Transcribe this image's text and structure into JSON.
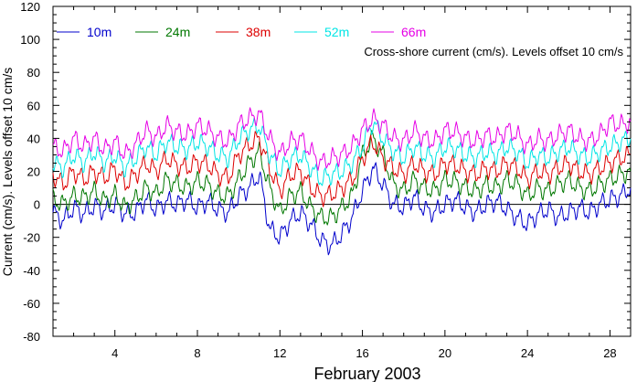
{
  "chart_data": {
    "type": "line",
    "title": "",
    "annotation": "Cross-shore current (cm/s). Levels offset 10 cm/s",
    "xlabel": "February 2003",
    "ylabel": "Current (cm/s). Levels offset 10 cm/s",
    "xlim": [
      1,
      29
    ],
    "ylim": [
      -80,
      120
    ],
    "xticks": [
      4,
      8,
      12,
      16,
      20,
      24,
      28
    ],
    "yticks": [
      -80,
      -60,
      -40,
      -20,
      0,
      20,
      40,
      60,
      80,
      100,
      120
    ],
    "zero_line": true,
    "grid": false,
    "legend_position": "top-left",
    "series": [
      {
        "name": "10m",
        "color": "#0000cc",
        "x": [
          1,
          1.5,
          2,
          2.5,
          3,
          3.5,
          4,
          4.5,
          5,
          5.5,
          6,
          6.5,
          7,
          7.5,
          8,
          8.5,
          9,
          9.5,
          10,
          10.5,
          11,
          11.5,
          12,
          12.5,
          13,
          13.5,
          14,
          14.5,
          15,
          15.5,
          16,
          16.5,
          17,
          17.5,
          18,
          18.5,
          19,
          19.5,
          20,
          20.5,
          21,
          21.5,
          22,
          22.5,
          23,
          23.5,
          24,
          24.5,
          25,
          25.5,
          26,
          26.5,
          27,
          27.5,
          28,
          28.5,
          29
        ],
        "values": [
          -5,
          -10,
          -2,
          -6,
          -1,
          -4,
          0,
          -6,
          -5,
          3,
          -3,
          2,
          0,
          3,
          -2,
          2,
          -3,
          -5,
          5,
          10,
          18,
          -15,
          -20,
          -10,
          -5,
          -12,
          -22,
          -25,
          -18,
          -8,
          8,
          22,
          12,
          0,
          -2,
          5,
          -3,
          -5,
          0,
          3,
          -2,
          -5,
          0,
          2,
          -3,
          -8,
          -12,
          -6,
          -3,
          -8,
          -5,
          -2,
          -5,
          0,
          3,
          5,
          10
        ]
      },
      {
        "name": "24m",
        "color": "#007700",
        "x": [
          1,
          1.5,
          2,
          2.5,
          3,
          3.5,
          4,
          4.5,
          5,
          5.5,
          6,
          6.5,
          7,
          7.5,
          8,
          8.5,
          9,
          9.5,
          10,
          10.5,
          11,
          11.5,
          12,
          12.5,
          13,
          13.5,
          14,
          14.5,
          15,
          15.5,
          16,
          16.5,
          17,
          17.5,
          18,
          18.5,
          19,
          19.5,
          20,
          20.5,
          21,
          21.5,
          22,
          22.5,
          23,
          23.5,
          24,
          24.5,
          25,
          25.5,
          26,
          26.5,
          27,
          27.5,
          28,
          28.5,
          29
        ],
        "values": [
          3,
          0,
          5,
          4,
          8,
          2,
          6,
          -2,
          3,
          10,
          6,
          15,
          12,
          10,
          14,
          12,
          6,
          5,
          15,
          25,
          32,
          10,
          -5,
          5,
          8,
          -2,
          -8,
          -8,
          -2,
          5,
          30,
          40,
          30,
          12,
          8,
          15,
          10,
          8,
          15,
          14,
          10,
          8,
          12,
          10,
          15,
          12,
          5,
          10,
          8,
          12,
          15,
          10,
          8,
          12,
          15,
          18,
          20
        ]
      },
      {
        "name": "38m",
        "color": "#dd0000",
        "x": [
          1,
          1.5,
          2,
          2.5,
          3,
          3.5,
          4,
          4.5,
          5,
          5.5,
          6,
          6.5,
          7,
          7.5,
          8,
          8.5,
          9,
          9.5,
          10,
          10.5,
          11,
          11.5,
          12,
          12.5,
          13,
          13.5,
          14,
          14.5,
          15,
          15.5,
          16,
          16.5,
          17,
          17.5,
          18,
          18.5,
          19,
          19.5,
          20,
          20.5,
          21,
          21.5,
          22,
          22.5,
          23,
          23.5,
          24,
          24.5,
          25,
          25.5,
          26,
          26.5,
          27,
          27.5,
          28,
          28.5,
          29
        ],
        "values": [
          18,
          12,
          20,
          15,
          20,
          16,
          22,
          12,
          18,
          25,
          20,
          28,
          24,
          22,
          26,
          24,
          18,
          16,
          30,
          36,
          40,
          22,
          8,
          18,
          20,
          10,
          5,
          6,
          10,
          15,
          28,
          38,
          28,
          22,
          18,
          25,
          20,
          18,
          25,
          24,
          20,
          18,
          22,
          20,
          25,
          22,
          15,
          20,
          18,
          22,
          25,
          20,
          18,
          22,
          25,
          28,
          30
        ]
      },
      {
        "name": "52m",
        "color": "#00e5e5",
        "x": [
          1,
          1.5,
          2,
          2.5,
          3,
          3.5,
          4,
          4.5,
          5,
          5.5,
          6,
          6.5,
          7,
          7.5,
          8,
          8.5,
          9,
          9.5,
          10,
          10.5,
          11,
          11.5,
          12,
          12.5,
          13,
          13.5,
          14,
          14.5,
          15,
          15.5,
          16,
          16.5,
          17,
          17.5,
          18,
          18.5,
          19,
          19.5,
          20,
          20.5,
          21,
          21.5,
          22,
          22.5,
          23,
          23.5,
          24,
          24.5,
          25,
          25.5,
          26,
          26.5,
          27,
          27.5,
          28,
          28.5,
          29
        ],
        "values": [
          25,
          22,
          30,
          25,
          32,
          25,
          30,
          22,
          28,
          35,
          30,
          38,
          35,
          33,
          38,
          35,
          30,
          28,
          40,
          45,
          48,
          30,
          20,
          28,
          30,
          22,
          15,
          18,
          20,
          25,
          35,
          50,
          40,
          32,
          28,
          35,
          30,
          28,
          35,
          34,
          30,
          28,
          32,
          30,
          35,
          32,
          25,
          30,
          28,
          32,
          35,
          30,
          28,
          32,
          35,
          38,
          40
        ]
      },
      {
        "name": "66m",
        "color": "#e600e6",
        "x": [
          1,
          1.5,
          2,
          2.5,
          3,
          3.5,
          4,
          4.5,
          5,
          5.5,
          6,
          6.5,
          7,
          7.5,
          8,
          8.5,
          9,
          9.5,
          10,
          10.5,
          11,
          11.5,
          12,
          12.5,
          13,
          13.5,
          14,
          14.5,
          15,
          15.5,
          16,
          16.5,
          17,
          17.5,
          18,
          18.5,
          19,
          19.5,
          20,
          20.5,
          21,
          21.5,
          22,
          22.5,
          23,
          23.5,
          24,
          24.5,
          25,
          25.5,
          26,
          26.5,
          27,
          27.5,
          28,
          28.5,
          29
        ],
        "values": [
          35,
          32,
          40,
          35,
          40,
          33,
          38,
          30,
          36,
          45,
          40,
          48,
          44,
          42,
          48,
          45,
          40,
          38,
          48,
          52,
          55,
          40,
          30,
          38,
          40,
          32,
          25,
          28,
          30,
          35,
          45,
          52,
          48,
          40,
          38,
          45,
          40,
          38,
          45,
          44,
          40,
          38,
          42,
          40,
          45,
          42,
          35,
          40,
          38,
          42,
          45,
          40,
          38,
          42,
          50,
          48,
          50
        ]
      }
    ]
  }
}
